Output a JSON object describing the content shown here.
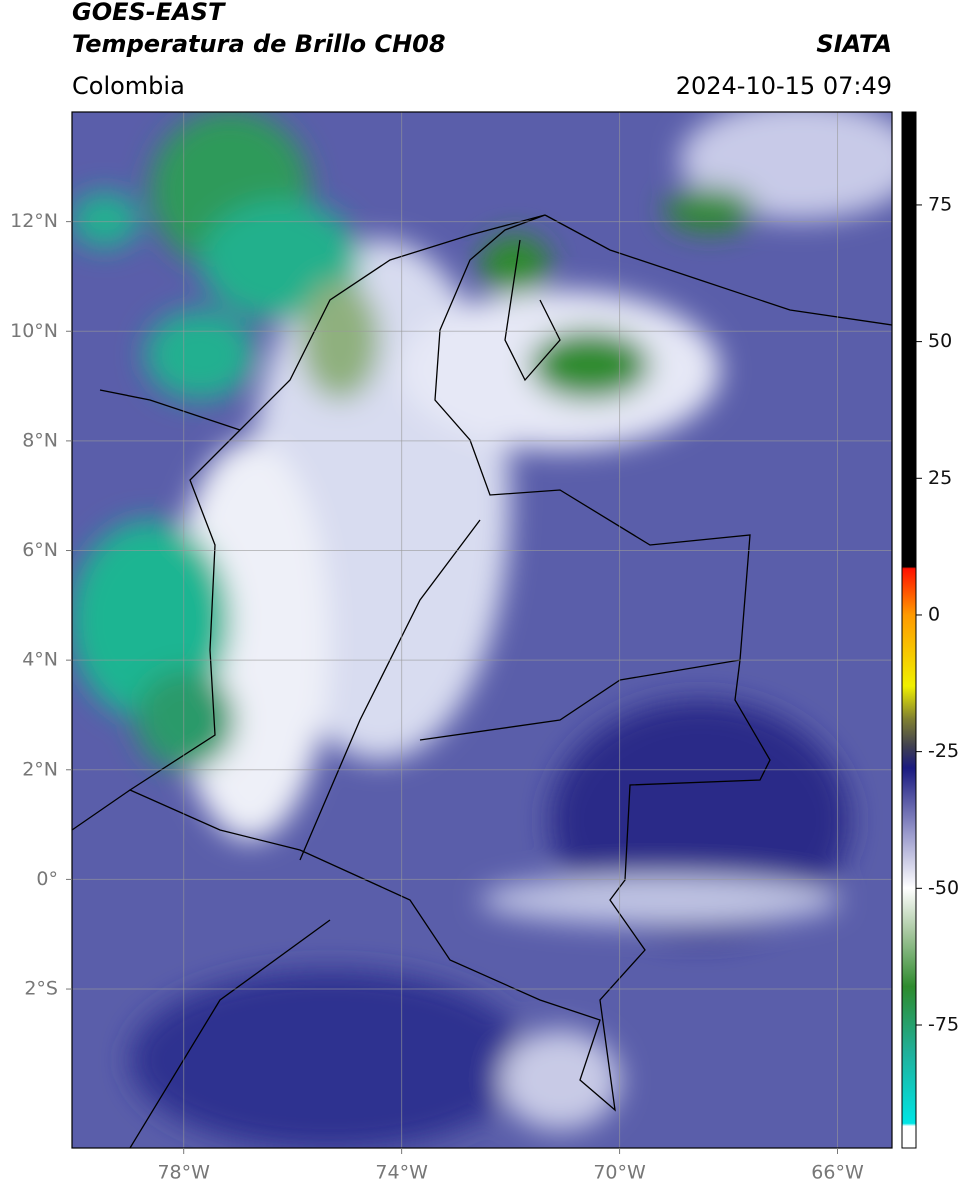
{
  "header": {
    "title": "GOES-EAST",
    "subtitle": "Temperatura de Brillo CH08",
    "region": "Colombia",
    "source": "SIATA",
    "datetime": "2024-10-15 07:49"
  },
  "chart_data": {
    "type": "map",
    "xlim": [
      -80.05,
      -65
    ],
    "ylim": [
      -4.9,
      14
    ],
    "xticks": [
      {
        "value": -78,
        "label": "78°W"
      },
      {
        "value": -74,
        "label": "74°W"
      },
      {
        "value": -70,
        "label": "70°W"
      },
      {
        "value": -66,
        "label": "66°W"
      }
    ],
    "yticks": [
      {
        "value": 12,
        "label": "12°N"
      },
      {
        "value": 10,
        "label": "10°N"
      },
      {
        "value": 8,
        "label": "8°N"
      },
      {
        "value": 6,
        "label": "6°N"
      },
      {
        "value": 4,
        "label": "4°N"
      },
      {
        "value": 2,
        "label": "2°N"
      },
      {
        "value": 0,
        "label": "0°"
      },
      {
        "value": -2,
        "label": "2°S"
      }
    ],
    "grid": true,
    "colorbar": {
      "lim": [
        -97.5,
        92
      ],
      "ticks": [
        75,
        50,
        25,
        0,
        -25,
        -50,
        -75
      ],
      "colormap": [
        {
          "value": -97.5,
          "color": "#ffffff"
        },
        {
          "value": -93.5,
          "color": "#ffffff"
        },
        {
          "value": -93,
          "color": "#00e5e5"
        },
        {
          "value": -80,
          "color": "#20b09a"
        },
        {
          "value": -68,
          "color": "#2e8b2e"
        },
        {
          "value": -58,
          "color": "#a8c8a0"
        },
        {
          "value": -50,
          "color": "#ffffff"
        },
        {
          "value": -40,
          "color": "#9a9acc"
        },
        {
          "value": -28,
          "color": "#1a1a80"
        },
        {
          "value": -24,
          "color": "#404050"
        },
        {
          "value": -19,
          "color": "#808030"
        },
        {
          "value": -13,
          "color": "#f0f000"
        },
        {
          "value": 0,
          "color": "#ff9a00"
        },
        {
          "value": 8.5,
          "color": "#ff1000"
        },
        {
          "value": 8.8,
          "color": "#000000"
        },
        {
          "value": 92,
          "color": "#000000"
        }
      ]
    }
  }
}
